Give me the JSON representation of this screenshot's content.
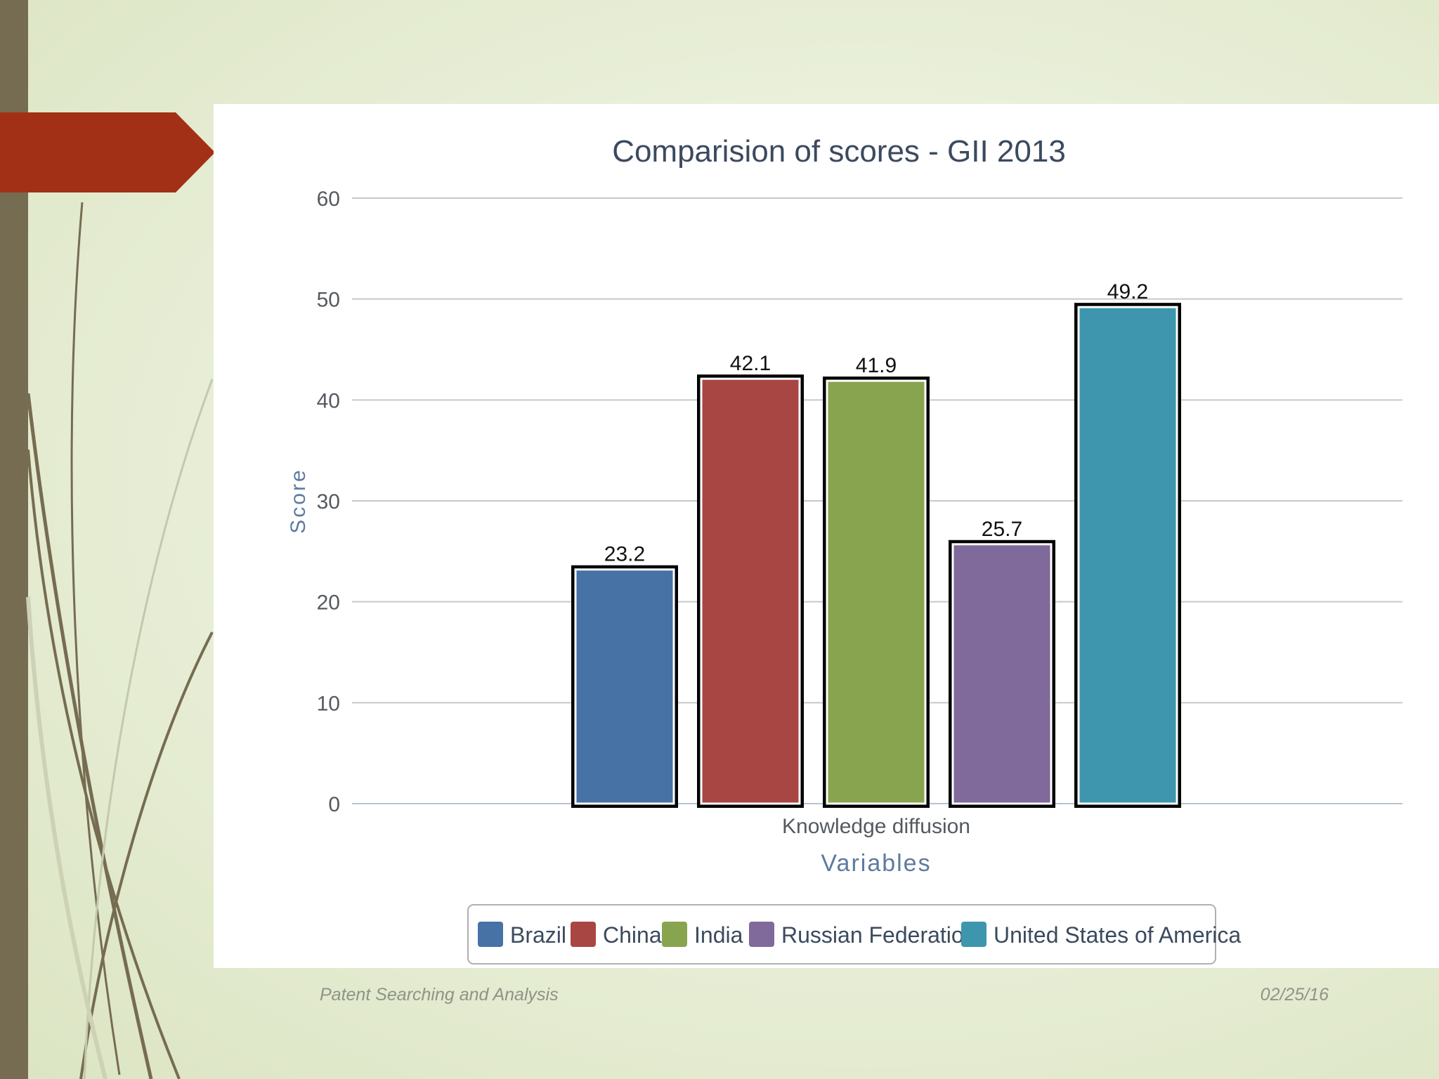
{
  "footer": {
    "left": "Patent Searching and Analysis",
    "right": "02/25/16"
  },
  "colors": {
    "accent_tab": "#a23016",
    "sidebar": "#766c52",
    "grid": "#c4c9cf"
  },
  "chart_data": {
    "type": "bar",
    "title": "Comparision of scores - GII 2013",
    "xlabel": "Variables",
    "ylabel": "Score",
    "categories": [
      "Knowledge diffusion"
    ],
    "ylim": [
      0,
      60
    ],
    "yticks": [
      0,
      10,
      20,
      30,
      40,
      50,
      60
    ],
    "grid": true,
    "legend_position": "bottom",
    "series": [
      {
        "name": "Brazil",
        "values": [
          23.2
        ],
        "color": "#4672a5",
        "label": "23.2"
      },
      {
        "name": "China",
        "values": [
          42.1
        ],
        "color": "#a84644",
        "label": "42.1"
      },
      {
        "name": "India",
        "values": [
          41.9
        ],
        "color": "#89a44f",
        "label": "41.9"
      },
      {
        "name": "Russian Federation",
        "values": [
          25.7
        ],
        "color": "#80699b",
        "label": "25.7"
      },
      {
        "name": "United States of America",
        "values": [
          49.2
        ],
        "color": "#3d96ae",
        "label": "49.2"
      }
    ]
  }
}
